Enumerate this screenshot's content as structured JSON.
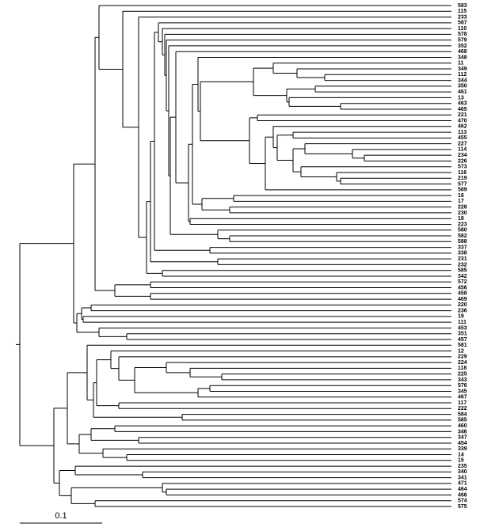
{
  "leaves": [
    "583",
    "115",
    "233",
    "587",
    "110",
    "578",
    "579",
    "352",
    "468",
    "348",
    "11",
    "349",
    "112",
    "344",
    "350",
    "461",
    "13",
    "463",
    "465",
    "221",
    "470",
    "462",
    "113",
    "455",
    "227",
    "114",
    "234",
    "226",
    "573",
    "116",
    "219",
    "577",
    "589",
    "16",
    "17",
    "228",
    "230",
    "18",
    "223",
    "580",
    "582",
    "588",
    "337",
    "338",
    "231",
    "232",
    "585",
    "342",
    "572",
    "456",
    "458",
    "469",
    "220",
    "236",
    "19",
    "111",
    "453",
    "351",
    "457",
    "581",
    "12",
    "229",
    "224",
    "118",
    "225",
    "343",
    "576",
    "345",
    "467",
    "117",
    "222",
    "584",
    "585",
    "460",
    "346",
    "347",
    "454",
    "339",
    "14",
    "15",
    "235",
    "340",
    "341",
    "471",
    "464",
    "466",
    "574",
    "575"
  ],
  "scale_bar": {
    "label": "0.1"
  }
}
